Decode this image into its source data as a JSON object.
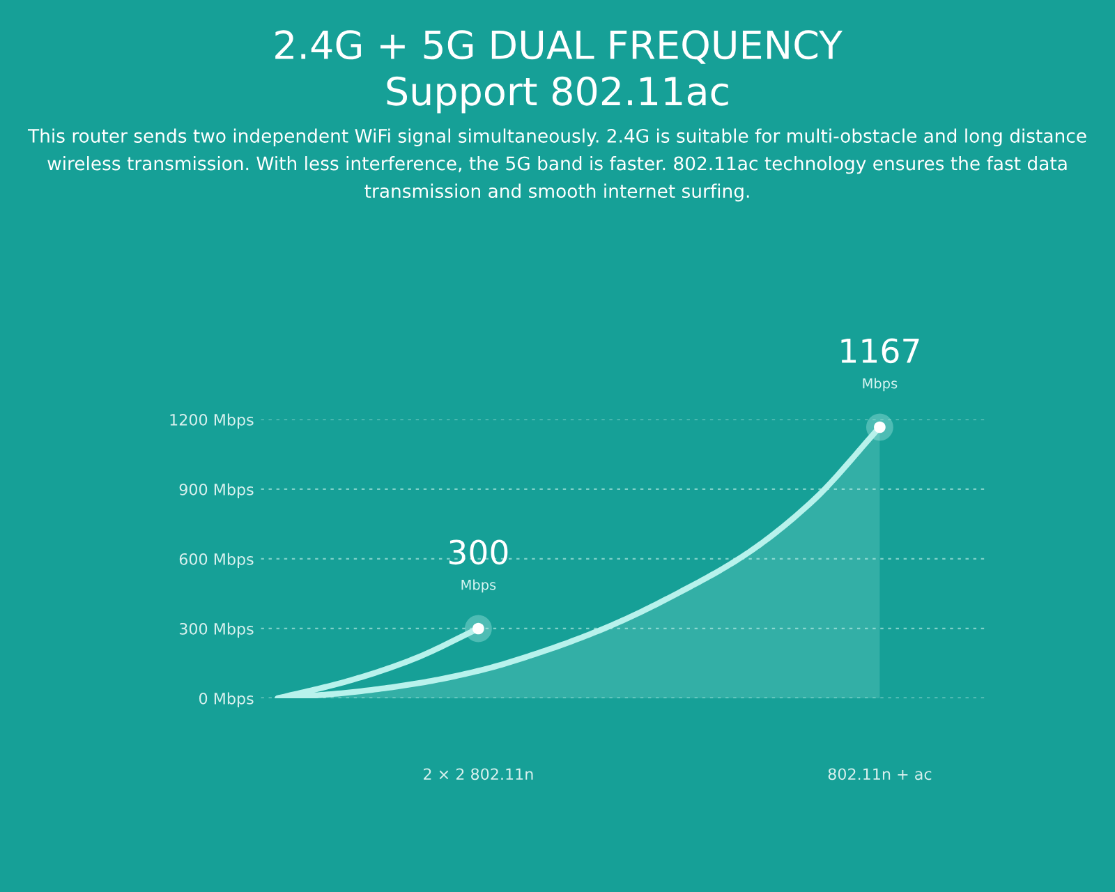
{
  "chart_data": {
    "type": "line",
    "title": "2.4G + 5G DUAL FREQUENCY\nSupport 802.11ac",
    "subtitle": "This router sends two independent WiFi signal simultaneously. 2.4G is suitable for multi-obstacle and long distance wireless transmission. With less interference, the 5G band is faster. 802.11ac technology ensures the fast data transmission and smooth internet surfing.",
    "categories": [
      null,
      null,
      null,
      "2 × 2 802.11n",
      null,
      null,
      null,
      null,
      null,
      "802.11n + ac"
    ],
    "ylim": [
      0,
      1200
    ],
    "yticks": [
      {
        "value": 0,
        "label": "0 Mbps"
      },
      {
        "value": 300,
        "label": "300 Mbps"
      },
      {
        "value": 600,
        "label": "600 Mbps"
      },
      {
        "value": 900,
        "label": "900 Mbps"
      },
      {
        "value": 1200,
        "label": "1200 Mbps"
      }
    ],
    "grid": "y",
    "line_style": "solid",
    "series": [
      {
        "color": "#b8f2ec",
        "values": [
          0,
          70,
          165,
          300,
          null,
          null,
          null,
          null,
          null,
          null
        ],
        "value_labels": [
          null,
          null,
          null,
          "300\nMbps",
          null,
          null,
          null,
          null,
          null,
          null
        ]
      },
      {
        "type": "area",
        "color": "#b8f2ec",
        "values": [
          0,
          23,
          60,
          118,
          205,
          315,
          455,
          620,
          850,
          1167
        ],
        "value_labels": [
          null,
          null,
          null,
          null,
          null,
          null,
          null,
          null,
          null,
          "1167\nMbps"
        ]
      }
    ]
  }
}
